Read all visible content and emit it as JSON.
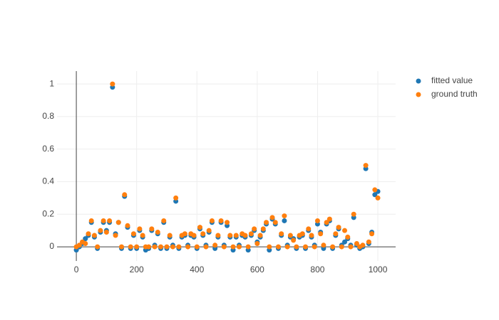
{
  "chart_data": {
    "type": "scatter",
    "x": [
      0,
      10,
      20,
      30,
      40,
      50,
      60,
      70,
      80,
      90,
      100,
      110,
      120,
      130,
      140,
      150,
      160,
      170,
      180,
      190,
      200,
      210,
      220,
      230,
      240,
      250,
      260,
      270,
      280,
      290,
      300,
      310,
      320,
      330,
      340,
      350,
      360,
      370,
      380,
      390,
      400,
      410,
      420,
      430,
      440,
      450,
      460,
      470,
      480,
      490,
      500,
      510,
      520,
      530,
      540,
      550,
      560,
      570,
      580,
      590,
      600,
      610,
      620,
      630,
      640,
      650,
      660,
      670,
      680,
      690,
      700,
      710,
      720,
      730,
      740,
      750,
      760,
      770,
      780,
      790,
      800,
      810,
      820,
      830,
      840,
      850,
      860,
      870,
      880,
      890,
      900,
      910,
      920,
      930,
      940,
      950,
      960,
      970,
      980,
      990,
      1000
    ],
    "series": [
      {
        "name": "fitted value",
        "color": "#1f77b4",
        "values": [
          -0.02,
          0.0,
          0.02,
          0.05,
          0.07,
          0.15,
          0.06,
          -0.01,
          0.09,
          0.15,
          0.1,
          0.15,
          0.98,
          0.08,
          0.15,
          -0.01,
          0.31,
          0.12,
          -0.01,
          0.07,
          -0.01,
          0.1,
          0.06,
          -0.02,
          -0.01,
          0.1,
          0.01,
          0.08,
          -0.01,
          0.15,
          -0.01,
          0.06,
          0.01,
          0.28,
          -0.01,
          0.06,
          0.07,
          0.01,
          0.07,
          0.06,
          -0.01,
          0.11,
          0.07,
          0.01,
          0.09,
          0.15,
          -0.01,
          0.06,
          0.15,
          0.01,
          0.13,
          0.06,
          -0.02,
          0.06,
          0.01,
          0.07,
          0.06,
          -0.02,
          0.07,
          0.1,
          0.03,
          0.06,
          0.1,
          0.14,
          -0.02,
          0.17,
          0.14,
          -0.01,
          0.07,
          0.16,
          0.01,
          0.06,
          0.05,
          -0.01,
          0.06,
          0.07,
          -0.01,
          0.1,
          0.06,
          0.01,
          0.14,
          0.09,
          -0.01,
          0.14,
          0.16,
          -0.01,
          0.07,
          0.11,
          0.01,
          0.03,
          0.05,
          0.01,
          0.18,
          0.01,
          -0.01,
          0.0,
          0.48,
          0.02,
          0.09,
          0.32,
          0.34
        ]
      },
      {
        "name": "ground truth",
        "color": "#ff7f0e",
        "values": [
          0,
          0.01,
          0.03,
          0.02,
          0.08,
          0.16,
          0.07,
          0,
          0.1,
          0.16,
          0.09,
          0.16,
          1.0,
          0.07,
          0.15,
          0,
          0.32,
          0.13,
          0,
          0.08,
          0,
          0.11,
          0.07,
          0,
          0,
          0.11,
          0,
          0.09,
          0,
          0.16,
          0,
          0.07,
          0,
          0.3,
          0,
          0.07,
          0.08,
          0,
          0.08,
          0.07,
          0,
          0.12,
          0.08,
          0,
          0.1,
          0.16,
          0.01,
          0.07,
          0.16,
          0,
          0.15,
          0.07,
          0,
          0.07,
          0,
          0.08,
          0.07,
          0,
          0.08,
          0.11,
          0.02,
          0.07,
          0.11,
          0.15,
          0,
          0.18,
          0.15,
          0,
          0.08,
          0.19,
          0,
          0.07,
          0.04,
          0,
          0.07,
          0.08,
          0,
          0.11,
          0.07,
          0,
          0.16,
          0.08,
          0.01,
          0.15,
          0.17,
          0,
          0.08,
          0.12,
          0,
          0.1,
          0.06,
          0,
          0.2,
          0.02,
          0,
          0.01,
          0.5,
          0.03,
          0.08,
          0.35,
          0.3
        ]
      }
    ],
    "xlim": [
      -64,
      1059
    ],
    "ylim": [
      -0.087,
      1.079
    ],
    "xticks": [
      0,
      200,
      400,
      600,
      800,
      1000
    ],
    "yticks": [
      0,
      0.2,
      0.4,
      0.6,
      0.8,
      1
    ],
    "grid": true,
    "legend": "top-right"
  }
}
